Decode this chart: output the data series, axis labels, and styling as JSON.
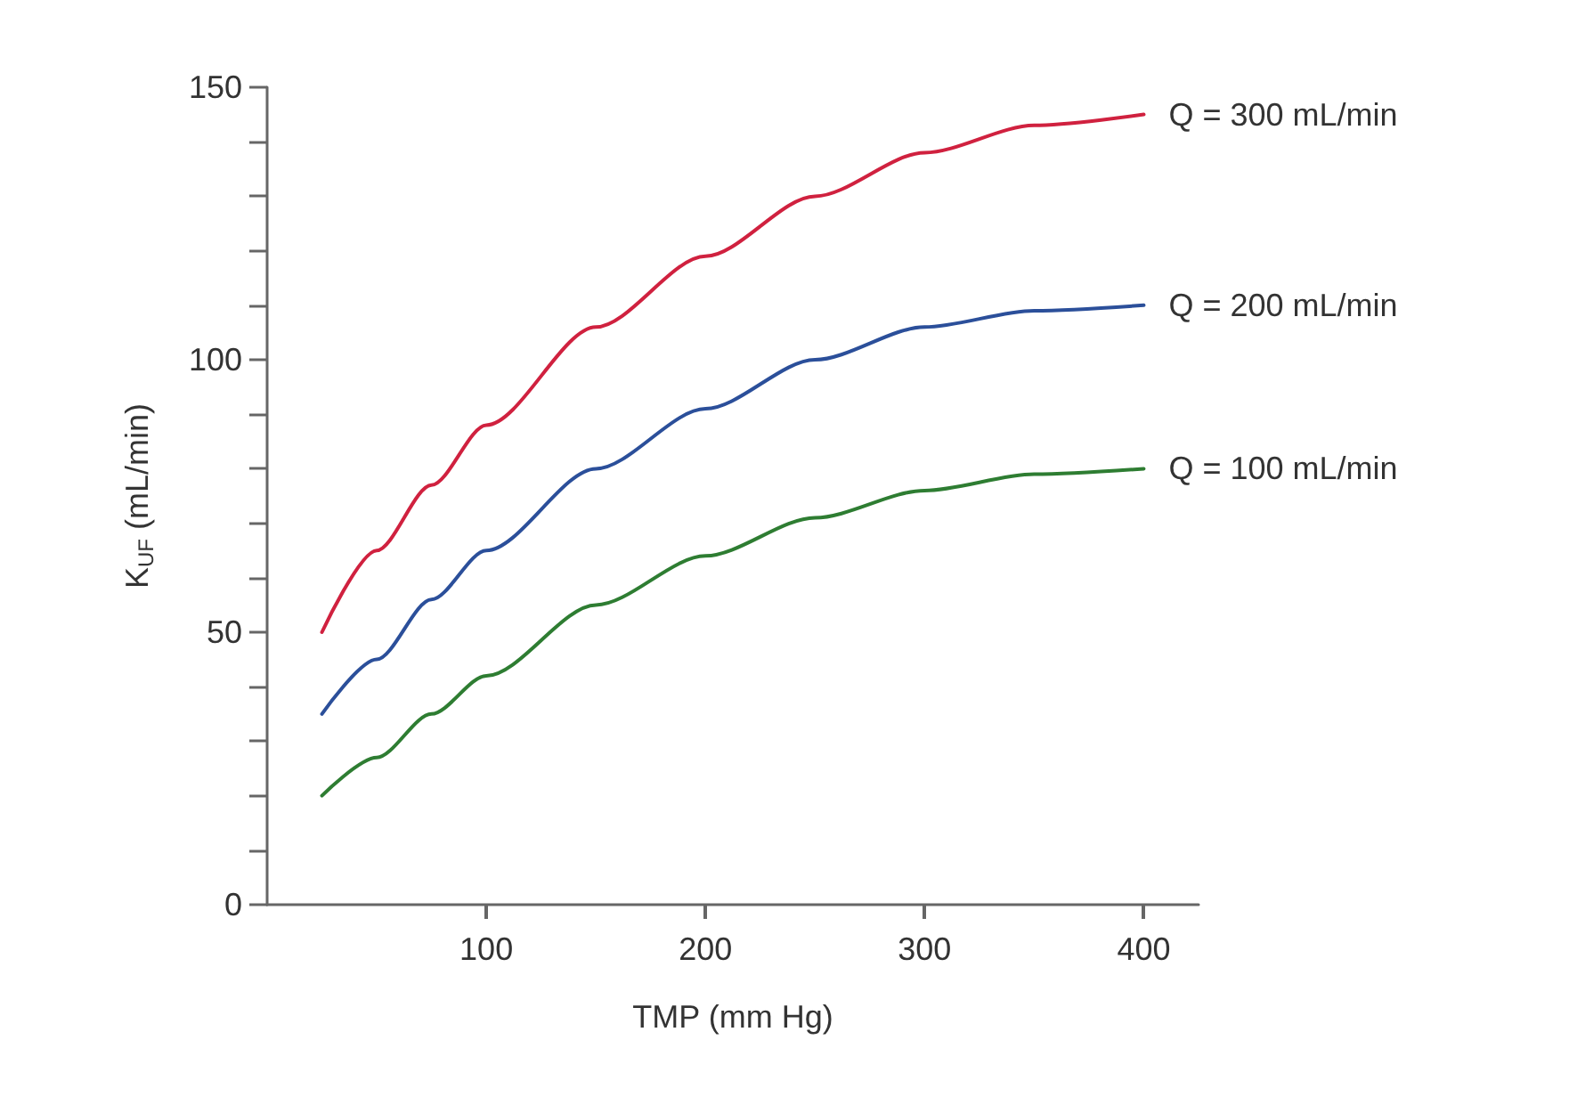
{
  "chart_data": {
    "type": "line",
    "xlabel": "TMP (mm Hg)",
    "ylabel": "K$_{UF}$ (mL/min)",
    "x": [
      25,
      50,
      75,
      100,
      150,
      200,
      250,
      300,
      350,
      400
    ],
    "series": [
      {
        "name": "Q = 300 mL/min",
        "color": "#d0213f",
        "values": [
          50,
          65,
          77,
          88,
          106,
          119,
          130,
          138,
          143,
          145
        ]
      },
      {
        "name": "Q = 200 mL/min",
        "color": "#2b4f9a",
        "values": [
          35,
          45,
          56,
          65,
          80,
          91,
          100,
          106,
          109,
          110
        ]
      },
      {
        "name": "Q = 100 mL/min",
        "color": "#2e7d32",
        "values": [
          20,
          27,
          35,
          42,
          55,
          64,
          71,
          76,
          79,
          80
        ]
      }
    ],
    "xlim": [
      0,
      425
    ],
    "xticks": [
      100,
      200,
      300,
      400
    ],
    "ylim": [
      0,
      150
    ],
    "yticks": [
      0,
      {
        "value": 10,
        "label": null
      },
      {
        "value": 20,
        "label": null
      },
      {
        "value": 30,
        "label": null
      },
      {
        "value": 40,
        "label": null
      },
      50,
      {
        "value": 60,
        "label": null
      },
      {
        "value": 70,
        "label": null
      },
      {
        "value": 80,
        "label": null
      },
      {
        "value": 90,
        "label": null
      },
      100,
      {
        "value": 110,
        "label": null
      },
      {
        "value": 120,
        "label": null
      },
      {
        "value": 130,
        "label": null
      },
      {
        "value": 140,
        "label": null
      },
      150
    ],
    "grid": false,
    "legend": false,
    "marker": "none",
    "line_style": "solid"
  }
}
